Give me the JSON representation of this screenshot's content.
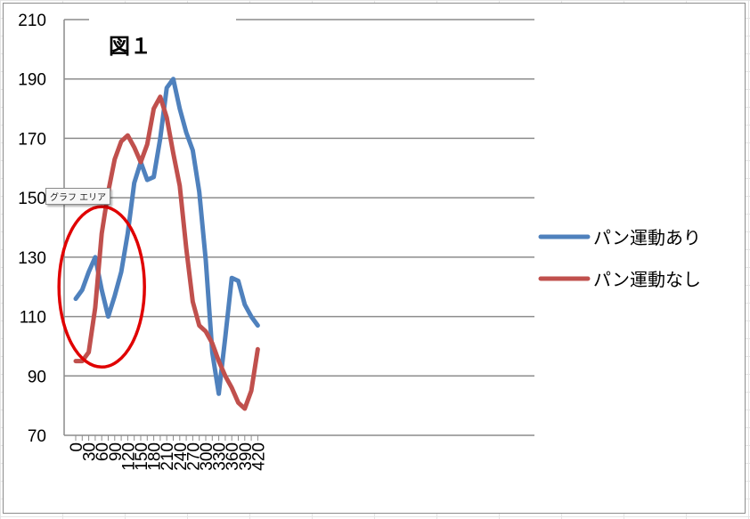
{
  "chart_data": {
    "type": "line",
    "title": "図１",
    "x": [
      0,
      15,
      30,
      45,
      60,
      75,
      90,
      105,
      120,
      135,
      150,
      165,
      180,
      195,
      210,
      225,
      240,
      255,
      270,
      285,
      300,
      315,
      330,
      345,
      360,
      375,
      390,
      405,
      420
    ],
    "x_tick_labels": [
      "0",
      "30",
      "60",
      "90",
      "120",
      "150",
      "180",
      "210",
      "240",
      "270",
      "300",
      "330",
      "360",
      "390",
      "420"
    ],
    "y_tick_labels": [
      "70",
      "90",
      "110",
      "130",
      "150",
      "170",
      "190",
      "210"
    ],
    "ylim": [
      70,
      210
    ],
    "xlim": [
      0,
      420
    ],
    "grid": true,
    "legend_position": "right",
    "series": [
      {
        "name": "パン運動あり",
        "color": "#4f81bd",
        "values": [
          116,
          119,
          125,
          130,
          119,
          110,
          117,
          125,
          138,
          155,
          162,
          156,
          157,
          170,
          187,
          190,
          180,
          172,
          166,
          152,
          129,
          98,
          84,
          103,
          123,
          122,
          114,
          110,
          107
        ]
      },
      {
        "name": "パン運動なし",
        "color": "#c0504d",
        "values": [
          95,
          95,
          98,
          113,
          138,
          152,
          163,
          169,
          171,
          167,
          162,
          168,
          180,
          184,
          177,
          165,
          154,
          133,
          115,
          107,
          105,
          101,
          95,
          90,
          86,
          81,
          79,
          85,
          99
        ]
      }
    ],
    "annotation": {
      "shape": "ellipse",
      "color": "#e00000",
      "center_x": 60,
      "center_y": 120,
      "rx_data": 22,
      "ry_data": 20
    }
  },
  "tooltip": {
    "label": "グラフ エリア"
  }
}
